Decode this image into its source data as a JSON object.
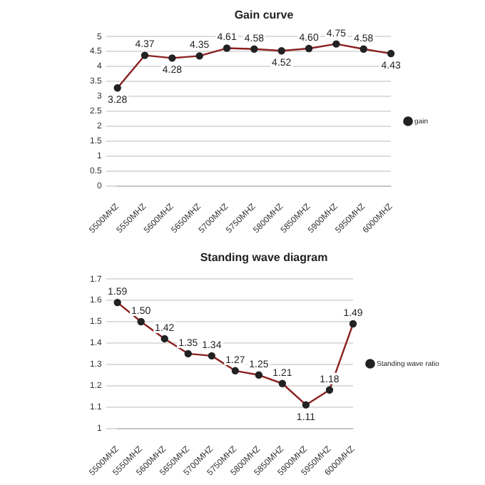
{
  "chart_data": [
    {
      "type": "line",
      "title": "Gain curve",
      "categories": [
        "5500MHZ",
        "5550MHZ",
        "5600MHZ",
        "5650MHZ",
        "5700MHZ",
        "5750MHZ",
        "5800MHZ",
        "5850MHZ",
        "5900MHZ",
        "5950MHZ",
        "6000MHZ"
      ],
      "series": [
        {
          "name": "gain",
          "color": "#8b2020",
          "values": [
            3.28,
            4.37,
            4.28,
            4.35,
            4.61,
            4.58,
            4.52,
            4.6,
            4.75,
            4.58,
            4.43
          ],
          "value_labels": [
            "3.28",
            "4.37",
            "4.28",
            "4.35",
            "4.61",
            "4.58",
            "4.52",
            "4.60",
            "4.75",
            "4.58",
            "4.43"
          ]
        }
      ],
      "ylim": [
        0,
        5
      ],
      "yticks": [
        0,
        0.5,
        1,
        1.5,
        2,
        2.5,
        3,
        3.5,
        4,
        4.5,
        5
      ],
      "grid": "y",
      "legend": "right",
      "marker": "circle"
    },
    {
      "type": "line",
      "title": "Standing wave diagram",
      "categories": [
        "5500MHZ",
        "5550MHZ",
        "5600MHZ",
        "5650MHZ",
        "5700MHZ",
        "5750MHZ",
        "5800MHZ",
        "5850MHZ",
        "5900MHZ",
        "5950MHZ",
        "6000MHZ"
      ],
      "series": [
        {
          "name": "Standing wave ratio",
          "color": "#8b2020",
          "values": [
            1.59,
            1.5,
            1.42,
            1.35,
            1.34,
            1.27,
            1.25,
            1.21,
            1.11,
            1.18,
            1.49
          ],
          "value_labels": [
            "1.59",
            "1.50",
            "1.42",
            "1.35",
            "1.34",
            "1.27",
            "1.25",
            "1.21",
            "1.11",
            "1.18",
            "1.49"
          ]
        }
      ],
      "ylim": [
        1,
        1.7
      ],
      "yticks": [
        1,
        1.1,
        1.2,
        1.3,
        1.4,
        1.5,
        1.6,
        1.7
      ],
      "grid": "y",
      "legend": "right",
      "marker": "circle"
    }
  ]
}
